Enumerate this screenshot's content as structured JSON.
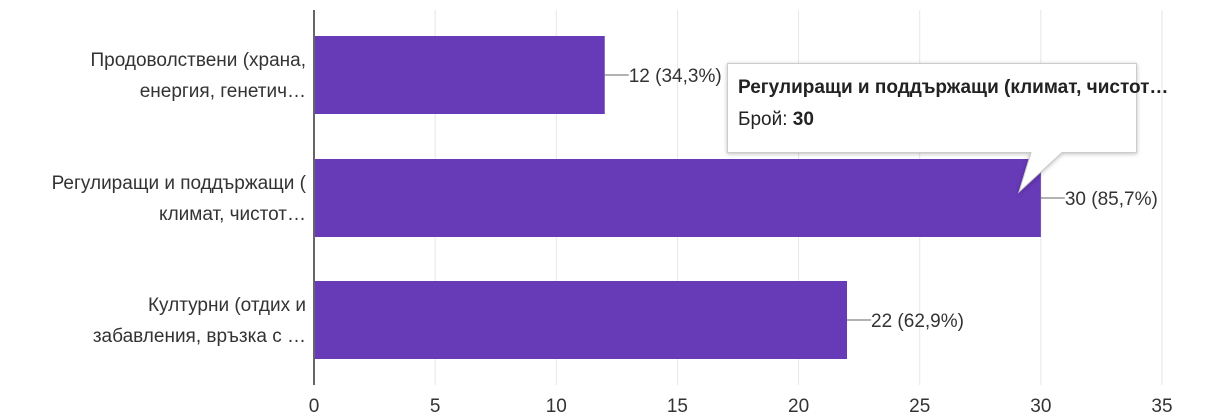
{
  "chart_data": {
    "type": "bar",
    "orientation": "horizontal",
    "categories": [
      [
        "Продоволствени (храна,",
        "енергия, генетич…"
      ],
      [
        "Регулиращи и поддържащи (",
        "климат, чистот…"
      ],
      [
        "Културни (отдих и",
        "забавления, връзка с …"
      ]
    ],
    "values": [
      12,
      30,
      22
    ],
    "data_labels": [
      "12 (34,3%)",
      "30 (85,7%)",
      "22 (62,9%)"
    ],
    "xlim": [
      0,
      35
    ],
    "xticks": [
      0,
      5,
      10,
      15,
      20,
      25,
      30,
      35
    ],
    "grid": true,
    "bar_color": "#673ab7",
    "tooltip": {
      "title": "Регулиращи и поддържащи (климат, чистот…",
      "value_label": "Брой:",
      "value": "30"
    }
  }
}
